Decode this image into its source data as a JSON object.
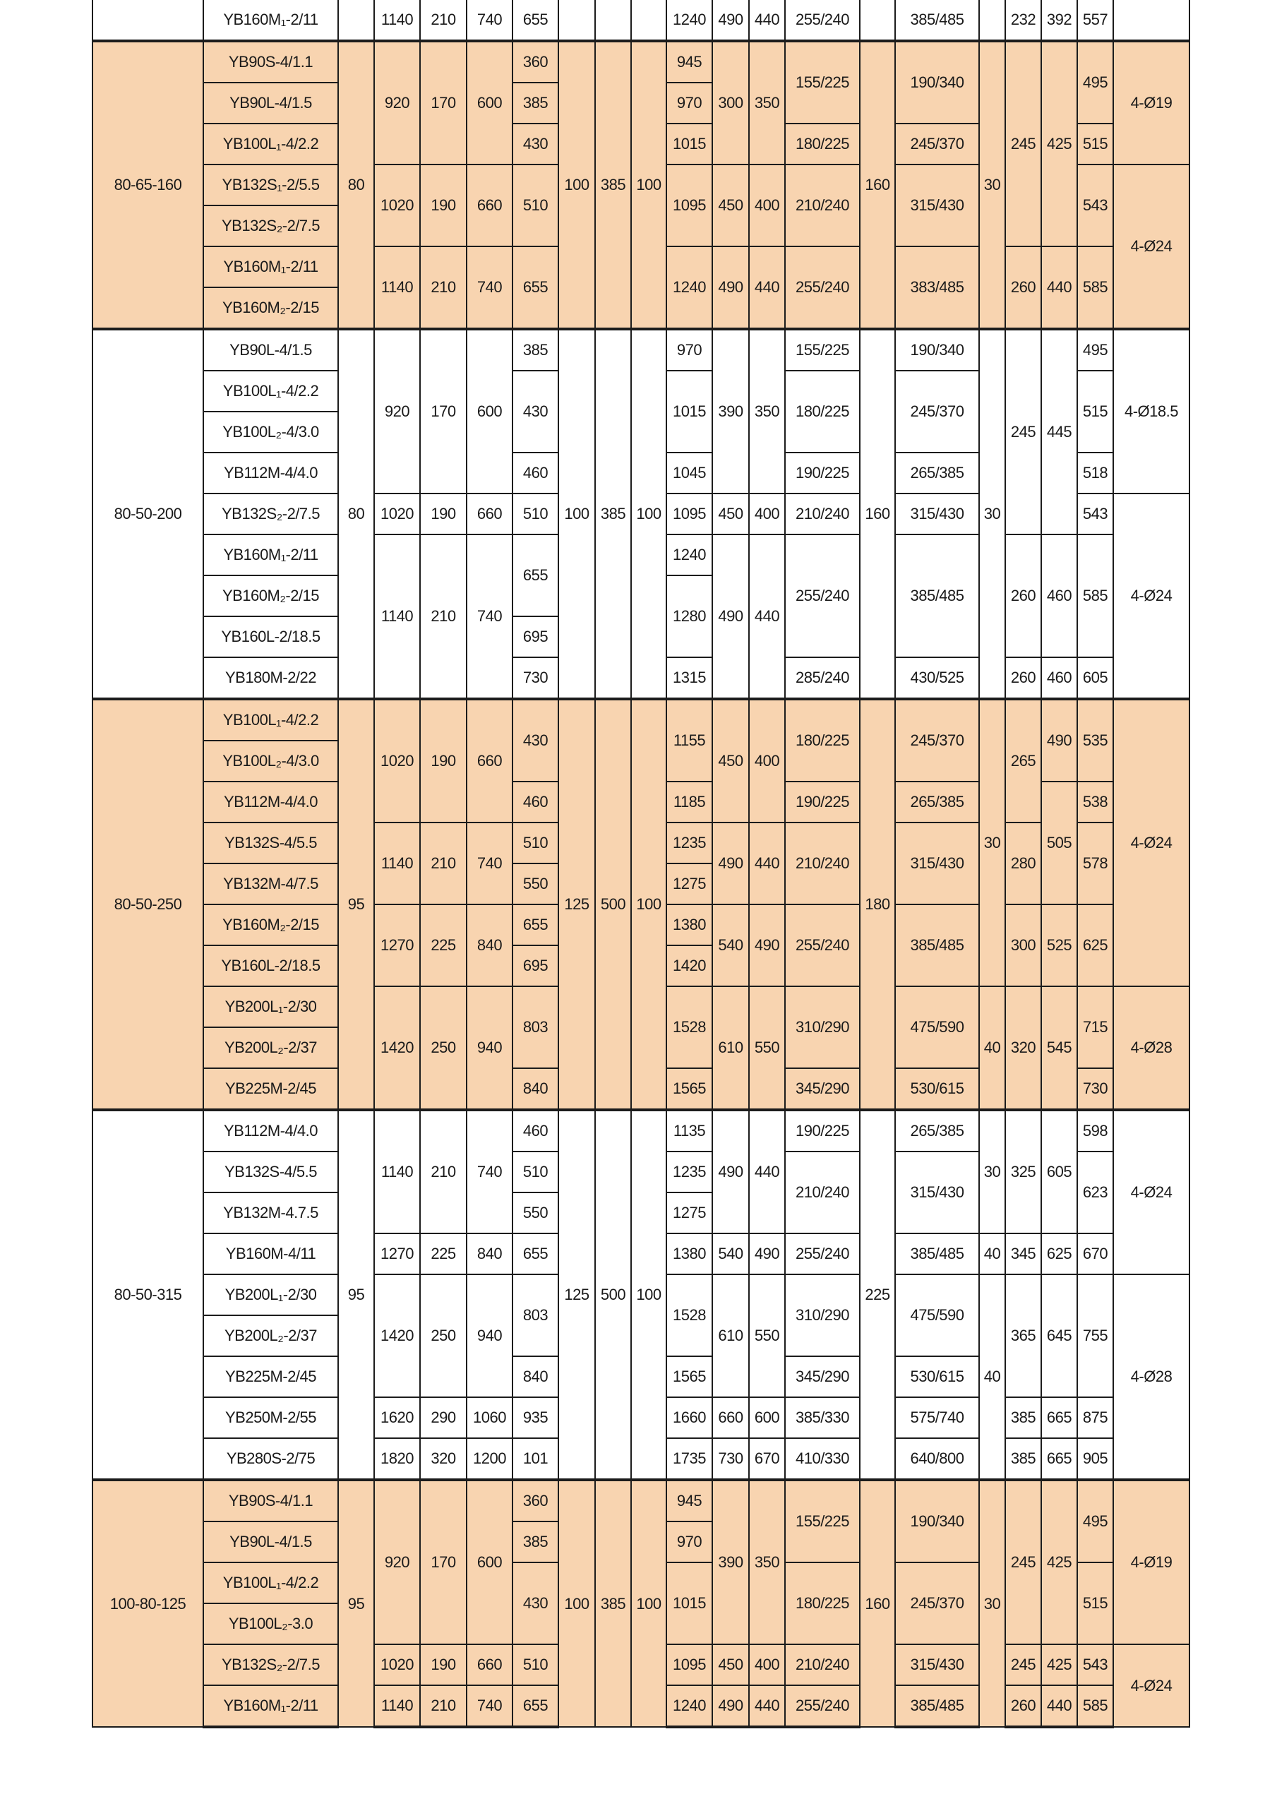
{
  "colors": {
    "shaded_row": "#F8D4B0",
    "border": "#1c1c1c"
  },
  "groups": [
    {
      "shaded": false,
      "rows": [
        [
          "",
          "YB160M₁-2/11",
          "",
          "1140",
          "210",
          "740",
          "655",
          "",
          "",
          "",
          "1240",
          "490",
          "440",
          "255/240",
          "",
          "385/485",
          "",
          "232",
          "392",
          "557",
          ""
        ]
      ]
    },
    {
      "shaded": true,
      "rows": [
        [
          {
            "t": "80-65-160",
            "r": 7
          },
          "YB90S-4/1.1",
          {
            "t": "80",
            "r": 7
          },
          {
            "t": "920",
            "r": 3
          },
          {
            "t": "170",
            "r": 3
          },
          {
            "t": "600",
            "r": 3
          },
          "360",
          {
            "t": "100",
            "r": 7
          },
          {
            "t": "385",
            "r": 7
          },
          {
            "t": "100",
            "r": 7
          },
          "945",
          {
            "t": "300",
            "r": 3
          },
          {
            "t": "350",
            "r": 3
          },
          {
            "t": "155/225",
            "r": 2
          },
          {
            "t": "160",
            "r": 7
          },
          {
            "t": "190/340",
            "r": 2
          },
          {
            "t": "30",
            "r": 7
          },
          {
            "t": "245",
            "r": 5
          },
          {
            "t": "425",
            "r": 5
          },
          {
            "t": "495",
            "r": 2
          },
          {
            "t": "4-Ø19",
            "r": 3
          }
        ],
        [
          "YB90L-4/1.5",
          "385",
          "970"
        ],
        [
          "YB100L₁-4/2.2",
          "430",
          "1015",
          "180/225",
          "245/370",
          "515"
        ],
        [
          "YB132S₁-2/5.5",
          {
            "t": "1020",
            "r": 2
          },
          {
            "t": "190",
            "r": 2
          },
          {
            "t": "660",
            "r": 2
          },
          {
            "t": "510",
            "r": 2
          },
          {
            "t": "1095",
            "r": 2
          },
          {
            "t": "450",
            "r": 2
          },
          {
            "t": "400",
            "r": 2
          },
          {
            "t": "210/240",
            "r": 2
          },
          {
            "t": "315/430",
            "r": 2
          },
          {
            "t": "543",
            "r": 2
          },
          {
            "t": "4-Ø24",
            "r": 4
          }
        ],
        [
          "YB132S₂-2/7.5"
        ],
        [
          "YB160M₁-2/11",
          {
            "t": "1140",
            "r": 2
          },
          {
            "t": "210",
            "r": 2
          },
          {
            "t": "740",
            "r": 2
          },
          {
            "t": "655",
            "r": 2
          },
          {
            "t": "1240",
            "r": 2
          },
          {
            "t": "490",
            "r": 2
          },
          {
            "t": "440",
            "r": 2
          },
          {
            "t": "255/240",
            "r": 2
          },
          {
            "t": "383/485",
            "r": 2
          },
          {
            "t": "260",
            "r": 2
          },
          {
            "t": "440",
            "r": 2
          },
          {
            "t": "585",
            "r": 2
          }
        ],
        [
          "YB160M₂-2/15"
        ]
      ]
    },
    {
      "shaded": false,
      "rows": [
        [
          {
            "t": "80-50-200",
            "r": 9
          },
          "YB90L-4/1.5",
          {
            "t": "80",
            "r": 9
          },
          {
            "t": "920",
            "r": 4
          },
          {
            "t": "170",
            "r": 4
          },
          {
            "t": "600",
            "r": 4
          },
          "385",
          {
            "t": "100",
            "r": 9
          },
          {
            "t": "385",
            "r": 9
          },
          {
            "t": "100",
            "r": 9
          },
          "970",
          {
            "t": "390",
            "r": 4
          },
          {
            "t": "350",
            "r": 4
          },
          "155/225",
          {
            "t": "160",
            "r": 9
          },
          "190/340",
          {
            "t": "30",
            "r": 9
          },
          {
            "t": "245",
            "r": 5
          },
          {
            "t": "445",
            "r": 5
          },
          "495",
          {
            "t": "4-Ø18.5",
            "r": 4
          }
        ],
        [
          "YB100L₁-4/2.2",
          {
            "t": "430",
            "r": 2
          },
          {
            "t": "1015",
            "r": 2
          },
          {
            "t": "180/225",
            "r": 2
          },
          {
            "t": "245/370",
            "r": 2
          },
          {
            "t": "515",
            "r": 2
          }
        ],
        [
          "YB100L₂-4/3.0"
        ],
        [
          "YB112M-4/4.0",
          "460",
          "1045",
          "190/225",
          "265/385",
          "518"
        ],
        [
          "YB132S₂-2/7.5",
          "1020",
          "190",
          "660",
          "510",
          "1095",
          "450",
          "400",
          "210/240",
          "315/430",
          "543",
          {
            "t": "4-Ø24",
            "r": 5
          }
        ],
        [
          "YB160M₁-2/11",
          {
            "t": "1140",
            "r": 4
          },
          {
            "t": "210",
            "r": 4
          },
          {
            "t": "740",
            "r": 4
          },
          {
            "t": "655",
            "r": 2
          },
          "1240",
          {
            "t": "490",
            "r": 4
          },
          {
            "t": "440",
            "r": 4
          },
          {
            "t": "255/240",
            "r": 3
          },
          {
            "t": "385/485",
            "r": 3
          },
          {
            "t": "260",
            "r": 3
          },
          {
            "t": "460",
            "r": 3
          },
          {
            "t": "585",
            "r": 3
          }
        ],
        [
          "YB160M₂-2/15",
          {
            "t": "1280",
            "r": 2
          }
        ],
        [
          "YB160L-2/18.5",
          "695"
        ],
        [
          "YB180M-2/22",
          "730",
          "1315",
          "285/240",
          "430/525",
          "260",
          "460",
          "605"
        ]
      ]
    },
    {
      "shaded": true,
      "rows": [
        [
          {
            "t": "80-50-250",
            "r": 10
          },
          "YB100L₁-4/2.2",
          {
            "t": "95",
            "r": 10
          },
          {
            "t": "1020",
            "r": 3
          },
          {
            "t": "190",
            "r": 3
          },
          {
            "t": "660",
            "r": 3
          },
          {
            "t": "430",
            "r": 2
          },
          {
            "t": "125",
            "r": 10
          },
          {
            "t": "500",
            "r": 10
          },
          {
            "t": "100",
            "r": 10
          },
          {
            "t": "1155",
            "r": 2
          },
          {
            "t": "450",
            "r": 3
          },
          {
            "t": "400",
            "r": 3
          },
          {
            "t": "180/225",
            "r": 2
          },
          {
            "t": "180",
            "r": 10
          },
          {
            "t": "245/370",
            "r": 2
          },
          {
            "t": "30",
            "r": 7
          },
          {
            "t": "265",
            "r": 3
          },
          {
            "t": "490",
            "r": 2
          },
          {
            "t": "535",
            "r": 2
          },
          {
            "t": "4-Ø24",
            "r": 7
          }
        ],
        [
          "YB100L₂-4/3.0"
        ],
        [
          "YB112M-4/4.0",
          "460",
          "1185",
          "190/225",
          "265/385",
          {
            "t": "505",
            "r": 3
          },
          "538"
        ],
        [
          "YB132S-4/5.5",
          {
            "t": "1140",
            "r": 2
          },
          {
            "t": "210",
            "r": 2
          },
          {
            "t": "740",
            "r": 2
          },
          "510",
          "1235",
          {
            "t": "490",
            "r": 2
          },
          {
            "t": "440",
            "r": 2
          },
          {
            "t": "210/240",
            "r": 2
          },
          {
            "t": "315/430",
            "r": 2
          },
          {
            "t": "280",
            "r": 2
          },
          {
            "t": "578",
            "r": 2
          }
        ],
        [
          "YB132M-4/7.5",
          "550",
          "1275"
        ],
        [
          "YB160M₂-2/15",
          {
            "t": "1270",
            "r": 2
          },
          {
            "t": "225",
            "r": 2
          },
          {
            "t": "840",
            "r": 2
          },
          "655",
          "1380",
          {
            "t": "540",
            "r": 2
          },
          {
            "t": "490",
            "r": 2
          },
          {
            "t": "255/240",
            "r": 2
          },
          {
            "t": "385/485",
            "r": 2
          },
          {
            "t": "300",
            "r": 2
          },
          {
            "t": "525",
            "r": 2
          },
          {
            "t": "625",
            "r": 2
          }
        ],
        [
          "YB160L-2/18.5",
          "695",
          "1420"
        ],
        [
          "YB200L₁-2/30",
          {
            "t": "1420",
            "r": 3
          },
          {
            "t": "250",
            "r": 3
          },
          {
            "t": "940",
            "r": 3
          },
          {
            "t": "803",
            "r": 2
          },
          {
            "t": "1528",
            "r": 2
          },
          {
            "t": "610",
            "r": 3
          },
          {
            "t": "550",
            "r": 3
          },
          {
            "t": "310/290",
            "r": 2
          },
          {
            "t": "475/590",
            "r": 2
          },
          {
            "t": "40",
            "r": 3
          },
          {
            "t": "320",
            "r": 3
          },
          {
            "t": "545",
            "r": 3
          },
          {
            "t": "715",
            "r": 2
          },
          {
            "t": "4-Ø28",
            "r": 3
          }
        ],
        [
          "YB200L₂-2/37"
        ],
        [
          "YB225M-2/45",
          "840",
          "1565",
          "345/290",
          "530/615",
          "730"
        ]
      ]
    },
    {
      "shaded": false,
      "rows": [
        [
          {
            "t": "80-50-315",
            "r": 9
          },
          "YB112M-4/4.0",
          {
            "t": "95",
            "r": 9
          },
          {
            "t": "1140",
            "r": 3
          },
          {
            "t": "210",
            "r": 3
          },
          {
            "t": "740",
            "r": 3
          },
          "460",
          {
            "t": "125",
            "r": 9
          },
          {
            "t": "500",
            "r": 9
          },
          {
            "t": "100",
            "r": 9
          },
          "1135",
          {
            "t": "490",
            "r": 3
          },
          {
            "t": "440",
            "r": 3
          },
          "190/225",
          {
            "t": "225",
            "r": 9
          },
          "265/385",
          {
            "t": "30",
            "r": 3
          },
          {
            "t": "325",
            "r": 3
          },
          {
            "t": "605",
            "r": 3
          },
          "598",
          {
            "t": "4-Ø24",
            "r": 4
          }
        ],
        [
          "YB132S-4/5.5",
          "510",
          "1235",
          {
            "t": "210/240",
            "r": 2
          },
          {
            "t": "315/430",
            "r": 2
          },
          {
            "t": "623",
            "r": 2
          }
        ],
        [
          "YB132M-4.7.5",
          "550",
          "1275"
        ],
        [
          "YB160M-4/11",
          "1270",
          "225",
          "840",
          "655",
          "1380",
          "540",
          "490",
          "255/240",
          "385/485",
          "40",
          "345",
          "625",
          "670"
        ],
        [
          "YB200L₁-2/30",
          {
            "t": "1420",
            "r": 3
          },
          {
            "t": "250",
            "r": 3
          },
          {
            "t": "940",
            "r": 3
          },
          {
            "t": "803",
            "r": 2
          },
          {
            "t": "1528",
            "r": 2
          },
          {
            "t": "610",
            "r": 3
          },
          {
            "t": "550",
            "r": 3
          },
          {
            "t": "310/290",
            "r": 2
          },
          {
            "t": "475/590",
            "r": 2
          },
          {
            "t": "40",
            "r": 5
          },
          {
            "t": "365",
            "r": 3
          },
          {
            "t": "645",
            "r": 3
          },
          {
            "t": "755",
            "r": 3
          },
          {
            "t": "4-Ø28",
            "r": 5
          }
        ],
        [
          "YB200L₂-2/37"
        ],
        [
          "YB225M-2/45",
          "840",
          "1565",
          "345/290",
          "530/615"
        ],
        [
          "YB250M-2/55",
          "1620",
          "290",
          "1060",
          "935",
          "1660",
          "660",
          "600",
          "385/330",
          "575/740",
          "385",
          "665",
          "875"
        ],
        [
          "YB280S-2/75",
          "1820",
          "320",
          "1200",
          "101",
          "1735",
          "730",
          "670",
          "410/330",
          "640/800",
          "385",
          "665",
          "905"
        ]
      ]
    },
    {
      "shaded": true,
      "rows": [
        [
          {
            "t": "100-80-125",
            "r": 6
          },
          "YB90S-4/1.1",
          {
            "t": "95",
            "r": 6
          },
          {
            "t": "920",
            "r": 4
          },
          {
            "t": "170",
            "r": 4
          },
          {
            "t": "600",
            "r": 4
          },
          "360",
          {
            "t": "100",
            "r": 6
          },
          {
            "t": "385",
            "r": 6
          },
          {
            "t": "100",
            "r": 6
          },
          "945",
          {
            "t": "390",
            "r": 4
          },
          {
            "t": "350",
            "r": 4
          },
          {
            "t": "155/225",
            "r": 2
          },
          {
            "t": "160",
            "r": 6
          },
          {
            "t": "190/340",
            "r": 2
          },
          {
            "t": "30",
            "r": 6
          },
          {
            "t": "245",
            "r": 4
          },
          {
            "t": "425",
            "r": 4
          },
          {
            "t": "495",
            "r": 2
          },
          {
            "t": "4-Ø19",
            "r": 4
          }
        ],
        [
          "YB90L-4/1.5",
          "385",
          "970"
        ],
        [
          "YB100L₁-4/2.2",
          {
            "t": "430",
            "r": 2
          },
          {
            "t": "1015",
            "r": 2
          },
          {
            "t": "180/225",
            "r": 2
          },
          {
            "t": "245/370",
            "r": 2
          },
          {
            "t": "515",
            "r": 2
          }
        ],
        [
          "YB100L₂-3.0"
        ],
        [
          "YB132S₂-2/7.5",
          "1020",
          "190",
          "660",
          "510",
          "1095",
          "450",
          "400",
          "210/240",
          "315/430",
          "245",
          "425",
          "543",
          {
            "t": "4-Ø24",
            "r": 2
          }
        ],
        [
          "YB160M₁-2/11",
          "1140",
          "210",
          "740",
          "655",
          "1240",
          "490",
          "440",
          "255/240",
          "385/485",
          "260",
          "440",
          "585"
        ]
      ]
    }
  ]
}
